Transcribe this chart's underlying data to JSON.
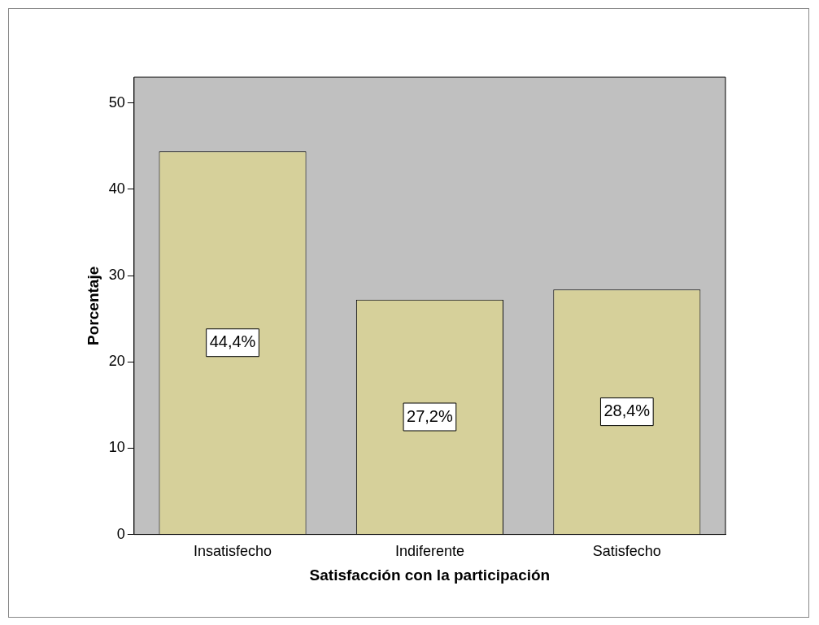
{
  "chart_data": {
    "type": "bar",
    "xlabel": "Satisfacción con la participación",
    "ylabel": "Porcentaje",
    "categories": [
      "Insatisfecho",
      "Indiferente",
      "Satisfecho"
    ],
    "values": [
      44.4,
      27.2,
      28.4
    ],
    "value_labels": [
      "44,4%",
      "27,2%",
      "28,4%"
    ],
    "color": "#d6d09a",
    "ylim": [
      0,
      53
    ],
    "yticks": [
      0,
      10,
      20,
      30,
      40,
      50
    ],
    "grid": false,
    "legend": false
  }
}
